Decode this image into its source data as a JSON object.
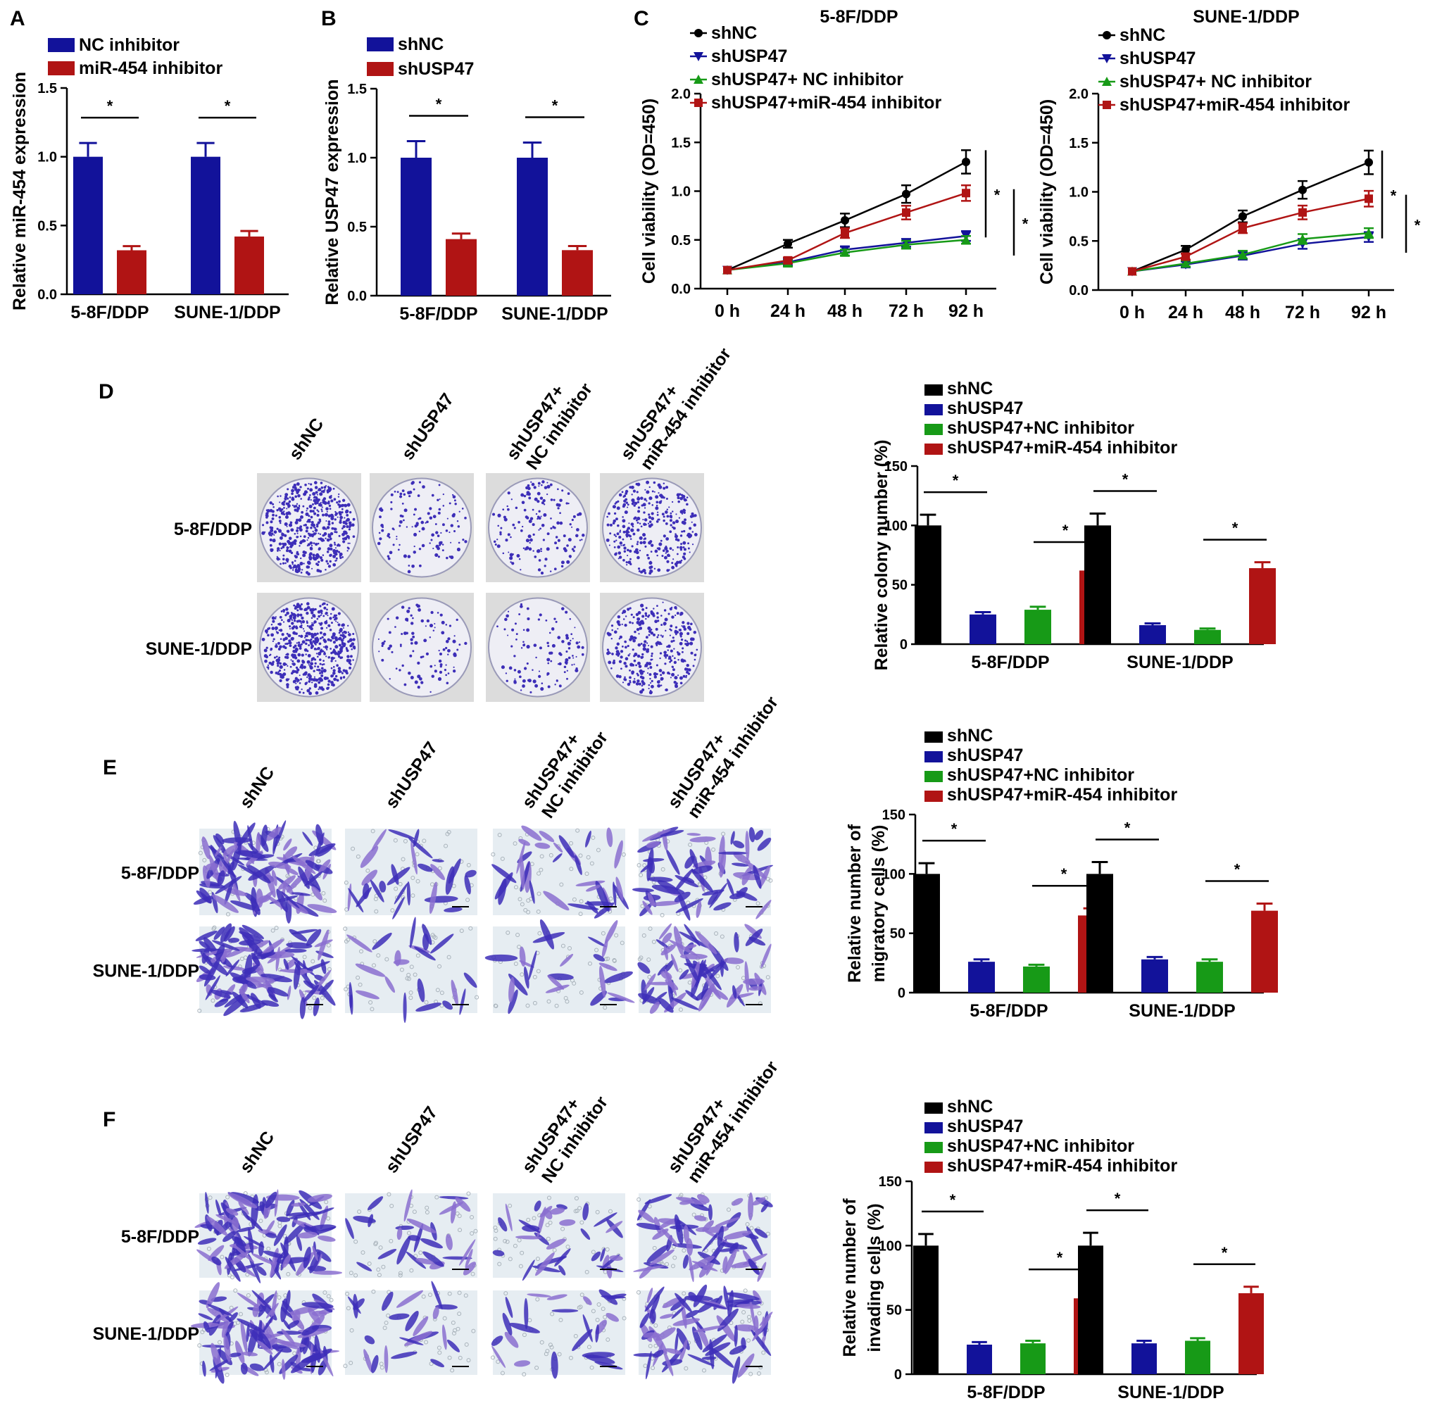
{
  "colors": {
    "shNC": "#000000",
    "shUSP47": "#12129a",
    "nc_inhibitor": "#179a17",
    "mir_inhibitor": "#b01414",
    "navy": "#12129a",
    "red": "#b01414",
    "plate_bg": "#dcdcdc",
    "stain": "#3d2eb8",
    "stain_light": "#8a6fd0",
    "field_bg": "#e6edf2"
  },
  "panel_letters": {
    "A": "A",
    "B": "B",
    "C": "C",
    "D": "D",
    "E": "E",
    "F": "F"
  },
  "micro_labels": {
    "cols": [
      "shNC",
      "shUSP47",
      [
        "shUSP47+",
        "NC inhibitor"
      ],
      [
        "shUSP47+",
        "miR-454 inhibitor"
      ]
    ],
    "rows": [
      "5-8F/DDP",
      "SUNE-1/DDP"
    ]
  },
  "chart_data": [
    {
      "id": "A",
      "type": "bar",
      "categories": [
        "5-8F/DDP",
        "SUNE-1/DDP"
      ],
      "series": [
        {
          "name": "NC inhibitor",
          "values": [
            1.0,
            1.0
          ],
          "errors": [
            0.1,
            0.1
          ],
          "color": "navy"
        },
        {
          "name": "miR-454 inhibitor",
          "values": [
            0.32,
            0.42
          ],
          "errors": [
            0.03,
            0.04
          ],
          "color": "red"
        }
      ],
      "ylabel": "Relative miR-454 expression",
      "ylim": [
        0,
        1.5
      ],
      "yticks": [
        "0.0",
        "0.5",
        "1.0",
        "1.5"
      ],
      "significance": [
        [
          "5-8F/DDP",
          0,
          1,
          "*"
        ],
        [
          "SUNE-1/DDP",
          0,
          1,
          "*"
        ]
      ],
      "legend": "top-left"
    },
    {
      "id": "B",
      "type": "bar",
      "categories": [
        "5-8F/DDP",
        "SUNE-1/DDP"
      ],
      "series": [
        {
          "name": "shNC",
          "values": [
            1.0,
            1.0
          ],
          "errors": [
            0.12,
            0.11
          ],
          "color": "navy"
        },
        {
          "name": "shUSP47",
          "values": [
            0.41,
            0.33
          ],
          "errors": [
            0.04,
            0.03
          ],
          "color": "red"
        }
      ],
      "ylabel": "Relative USP47 expression",
      "ylim": [
        0,
        1.5
      ],
      "yticks": [
        "0.0",
        "0.5",
        "1.0",
        "1.5"
      ],
      "significance": [
        [
          "5-8F/DDP",
          0,
          1,
          "*"
        ],
        [
          "SUNE-1/DDP",
          0,
          1,
          "*"
        ]
      ],
      "legend": "top-left"
    },
    {
      "id": "C1",
      "type": "line",
      "title": "5-8F/DDP",
      "x": [
        "0 h",
        "24 h",
        "48 h",
        "72 h",
        "92 h"
      ],
      "series": [
        {
          "name": "shNC",
          "values": [
            0.19,
            0.46,
            0.7,
            0.97,
            1.3
          ],
          "errors": [
            0.02,
            0.04,
            0.07,
            0.09,
            0.12
          ],
          "color": "shNC",
          "marker": "circle"
        },
        {
          "name": "shUSP47",
          "values": [
            0.19,
            0.27,
            0.4,
            0.47,
            0.54
          ],
          "errors": [
            0.02,
            0.03,
            0.03,
            0.04,
            0.05
          ],
          "color": "shUSP47",
          "marker": "triangle-down"
        },
        {
          "name": "shUSP47+ NC inhibitor",
          "values": [
            0.19,
            0.26,
            0.37,
            0.45,
            0.5
          ],
          "errors": [
            0.02,
            0.03,
            0.03,
            0.04,
            0.04
          ],
          "color": "nc_inhibitor",
          "marker": "triangle-up"
        },
        {
          "name": "shUSP47+miR-454 inhibitor",
          "values": [
            0.19,
            0.29,
            0.57,
            0.78,
            0.98
          ],
          "errors": [
            0.02,
            0.03,
            0.05,
            0.07,
            0.08
          ],
          "color": "mir_inhibitor",
          "marker": "square"
        }
      ],
      "ylabel": "Cell viability (OD=450)",
      "ylim": [
        0,
        2.0
      ],
      "yticks": [
        "0.0",
        "0.5",
        "1.0",
        "1.5",
        "2.0"
      ],
      "significance": [
        "*",
        "*"
      ],
      "legend": "top-left"
    },
    {
      "id": "C2",
      "type": "line",
      "title": "SUNE-1/DDP",
      "x": [
        "0 h",
        "24 h",
        "48 h",
        "72 h",
        "92 h"
      ],
      "series": [
        {
          "name": "shNC",
          "values": [
            0.19,
            0.41,
            0.75,
            1.02,
            1.3
          ],
          "errors": [
            0.02,
            0.04,
            0.06,
            0.09,
            0.12
          ],
          "color": "shNC",
          "marker": "circle"
        },
        {
          "name": "shUSP47",
          "values": [
            0.19,
            0.26,
            0.35,
            0.47,
            0.54
          ],
          "errors": [
            0.02,
            0.03,
            0.04,
            0.05,
            0.05
          ],
          "color": "shUSP47",
          "marker": "triangle-down"
        },
        {
          "name": "shUSP47+ NC inhibitor",
          "values": [
            0.19,
            0.27,
            0.36,
            0.52,
            0.58
          ],
          "errors": [
            0.02,
            0.03,
            0.04,
            0.05,
            0.05
          ],
          "color": "nc_inhibitor",
          "marker": "triangle-up"
        },
        {
          "name": "shUSP47+miR-454 inhibitor",
          "values": [
            0.19,
            0.34,
            0.63,
            0.79,
            0.93
          ],
          "errors": [
            0.02,
            0.03,
            0.05,
            0.07,
            0.08
          ],
          "color": "mir_inhibitor",
          "marker": "square"
        }
      ],
      "ylabel": "Cell viability (OD=450)",
      "ylim": [
        0,
        2.0
      ],
      "yticks": [
        "0.0",
        "0.5",
        "1.0",
        "1.5",
        "2.0"
      ],
      "significance": [
        "*",
        "*"
      ],
      "legend": "top-left"
    },
    {
      "id": "D",
      "type": "bar",
      "categories": [
        "5-8F/DDP",
        "SUNE-1/DDP"
      ],
      "series": [
        {
          "name": "shNC",
          "values": [
            100,
            100
          ],
          "errors": [
            9,
            10
          ],
          "color": "shNC"
        },
        {
          "name": "shUSP47",
          "values": [
            25,
            16
          ],
          "errors": [
            2,
            1.5
          ],
          "color": "shUSP47"
        },
        {
          "name": "shUSP47+NC inhibitor",
          "values": [
            29,
            12
          ],
          "errors": [
            2.5,
            1.2
          ],
          "color": "nc_inhibitor"
        },
        {
          "name": "shUSP47+miR-454 inhibitor",
          "values": [
            62,
            64
          ],
          "errors": [
            5,
            5
          ],
          "color": "mir_inhibitor"
        }
      ],
      "ylabel": "Relative colony number (%)",
      "ylim": [
        0,
        150
      ],
      "yticks": [
        "0",
        "50",
        "100",
        "150"
      ],
      "significance": [
        [
          "5-8F/DDP",
          0,
          1,
          "*"
        ],
        [
          "5-8F/DDP",
          2,
          3,
          "*"
        ],
        [
          "SUNE-1/DDP",
          0,
          1,
          "*"
        ],
        [
          "SUNE-1/DDP",
          2,
          3,
          "*"
        ]
      ],
      "legend": "top"
    },
    {
      "id": "E",
      "type": "bar",
      "categories": [
        "5-8F/DDP",
        "SUNE-1/DDP"
      ],
      "series": [
        {
          "name": "shNC",
          "values": [
            100,
            100
          ],
          "errors": [
            9,
            10
          ],
          "color": "shNC"
        },
        {
          "name": "shUSP47",
          "values": [
            26,
            28
          ],
          "errors": [
            2,
            2
          ],
          "color": "shUSP47"
        },
        {
          "name": "shUSP47+NC inhibitor",
          "values": [
            22,
            26
          ],
          "errors": [
            1.5,
            2
          ],
          "color": "nc_inhibitor"
        },
        {
          "name": "shUSP47+miR-454 inhibitor",
          "values": [
            65,
            69
          ],
          "errors": [
            6,
            6
          ],
          "color": "mir_inhibitor"
        }
      ],
      "ylabel": [
        "Relative number of",
        "migratory cells (%)"
      ],
      "ylim": [
        0,
        150
      ],
      "yticks": [
        "0",
        "50",
        "100",
        "150"
      ],
      "significance": [
        [
          "5-8F/DDP",
          0,
          1,
          "*"
        ],
        [
          "5-8F/DDP",
          2,
          3,
          "*"
        ],
        [
          "SUNE-1/DDP",
          0,
          1,
          "*"
        ],
        [
          "SUNE-1/DDP",
          2,
          3,
          "*"
        ]
      ],
      "legend": "top"
    },
    {
      "id": "F",
      "type": "bar",
      "categories": [
        "5-8F/DDP",
        "SUNE-1/DDP"
      ],
      "series": [
        {
          "name": "shNC",
          "values": [
            100,
            100
          ],
          "errors": [
            9,
            10
          ],
          "color": "shNC"
        },
        {
          "name": "shUSP47",
          "values": [
            23,
            24
          ],
          "errors": [
            2,
            2
          ],
          "color": "shUSP47"
        },
        {
          "name": "shUSP47+NC inhibitor",
          "values": [
            24,
            26
          ],
          "errors": [
            2,
            2
          ],
          "color": "nc_inhibitor"
        },
        {
          "name": "shUSP47+miR-454 inhibitor",
          "values": [
            59,
            63
          ],
          "errors": [
            5,
            5
          ],
          "color": "mir_inhibitor"
        }
      ],
      "ylabel": [
        "Relative number of",
        "invading cells (%)"
      ],
      "ylim": [
        0,
        150
      ],
      "yticks": [
        "0",
        "50",
        "100",
        "150"
      ],
      "significance": [
        [
          "5-8F/DDP",
          0,
          1,
          "*"
        ],
        [
          "5-8F/DDP",
          2,
          3,
          "*"
        ],
        [
          "SUNE-1/DDP",
          0,
          1,
          "*"
        ],
        [
          "SUNE-1/DDP",
          2,
          3,
          "*"
        ]
      ],
      "legend": "top"
    }
  ]
}
